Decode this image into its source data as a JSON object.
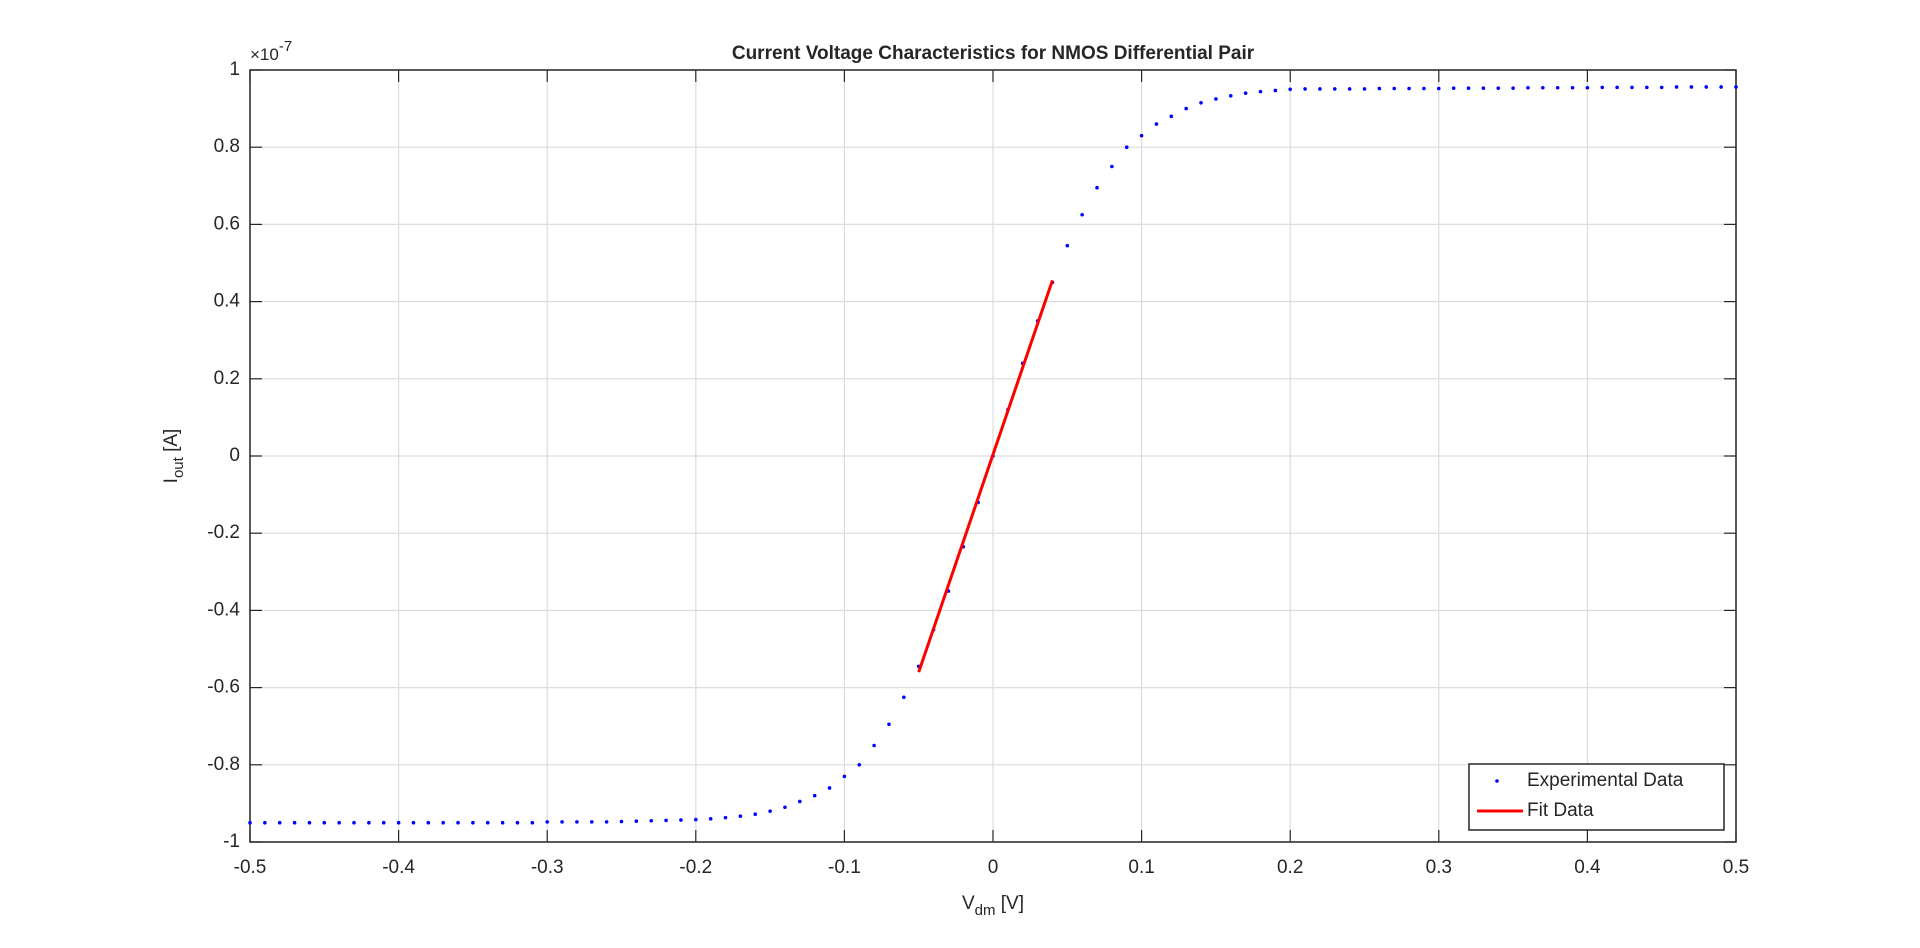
{
  "chart_data": {
    "type": "scatter",
    "title": "Current Voltage Characteristics for NMOS Differential Pair",
    "xlabel": [
      "V",
      "dm",
      " [V]"
    ],
    "ylabel": [
      "I",
      "out",
      " [A]"
    ],
    "y_exponent": [
      "×10",
      "-7"
    ],
    "xlim": [
      -0.5,
      0.5
    ],
    "xticks": [
      -0.5,
      -0.4,
      -0.3,
      -0.2,
      -0.1,
      0,
      0.1,
      0.2,
      0.3,
      0.4,
      0.5
    ],
    "ylim": [
      -1,
      1
    ],
    "yticks": [
      -1,
      -0.8,
      -0.6,
      -0.4,
      -0.2,
      0,
      0.2,
      0.4,
      0.6,
      0.8,
      1
    ],
    "grid": true,
    "legend": "lower right",
    "series": [
      {
        "name": "Experimental Data",
        "color": "#0000ff",
        "style": "dots",
        "x": [
          -0.5,
          -0.49,
          -0.48,
          -0.47,
          -0.46,
          -0.45,
          -0.44,
          -0.43,
          -0.42,
          -0.41,
          -0.4,
          -0.39,
          -0.38,
          -0.37,
          -0.36,
          -0.35,
          -0.34,
          -0.33,
          -0.32,
          -0.31,
          -0.3,
          -0.29,
          -0.28,
          -0.27,
          -0.26,
          -0.25,
          -0.24,
          -0.23,
          -0.22,
          -0.21,
          -0.2,
          -0.19,
          -0.18,
          -0.17,
          -0.16,
          -0.15,
          -0.14,
          -0.13,
          -0.12,
          -0.11,
          -0.1,
          -0.09,
          -0.08,
          -0.07,
          -0.06,
          -0.05,
          -0.04,
          -0.03,
          -0.02,
          -0.01,
          0,
          0.01,
          0.02,
          0.03,
          0.04,
          0.05,
          0.06,
          0.07,
          0.08,
          0.09,
          0.1,
          0.11,
          0.12,
          0.13,
          0.14,
          0.15,
          0.16,
          0.17,
          0.18,
          0.19,
          0.2,
          0.21,
          0.22,
          0.23,
          0.24,
          0.25,
          0.26,
          0.27,
          0.28,
          0.29,
          0.3,
          0.31,
          0.32,
          0.33,
          0.34,
          0.35,
          0.36,
          0.37,
          0.38,
          0.39,
          0.4,
          0.41,
          0.42,
          0.43,
          0.44,
          0.45,
          0.46,
          0.47,
          0.48,
          0.49,
          0.5
        ],
        "values": [
          -0.95,
          -0.95,
          -0.95,
          -0.95,
          -0.95,
          -0.95,
          -0.95,
          -0.95,
          -0.95,
          -0.95,
          -0.95,
          -0.95,
          -0.95,
          -0.95,
          -0.95,
          -0.95,
          -0.95,
          -0.95,
          -0.95,
          -0.95,
          -0.948,
          -0.948,
          -0.948,
          -0.948,
          -0.948,
          -0.947,
          -0.946,
          -0.945,
          -0.944,
          -0.943,
          -0.942,
          -0.94,
          -0.937,
          -0.933,
          -0.928,
          -0.92,
          -0.91,
          -0.895,
          -0.88,
          -0.86,
          -0.83,
          -0.8,
          -0.75,
          -0.695,
          -0.625,
          -0.545,
          -0.45,
          -0.35,
          -0.235,
          -0.12,
          0,
          0.12,
          0.24,
          0.35,
          0.45,
          0.545,
          0.625,
          0.695,
          0.75,
          0.8,
          0.83,
          0.86,
          0.88,
          0.9,
          0.915,
          0.925,
          0.933,
          0.94,
          0.944,
          0.947,
          0.95,
          0.951,
          0.951,
          0.951,
          0.951,
          0.951,
          0.952,
          0.952,
          0.952,
          0.952,
          0.952,
          0.953,
          0.953,
          0.953,
          0.953,
          0.953,
          0.954,
          0.954,
          0.954,
          0.954,
          0.954,
          0.955,
          0.955,
          0.955,
          0.955,
          0.955,
          0.956,
          0.956,
          0.956,
          0.956,
          0.956
        ]
      },
      {
        "name": "Fit Data",
        "color": "#ff0000",
        "style": "line",
        "x": [
          -0.05,
          0.04
        ],
        "values": [
          -0.56,
          0.455
        ]
      }
    ]
  }
}
